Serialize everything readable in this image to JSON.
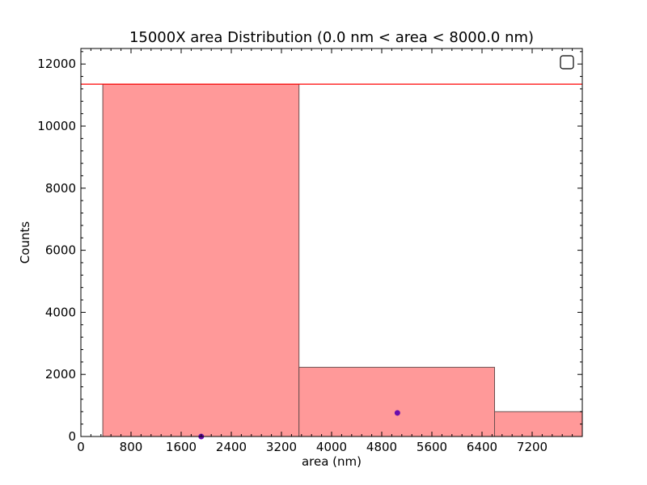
{
  "chart_data": {
    "type": "bar",
    "title": "15000X area Distribution (0.0 nm < area < 8000.0  nm)",
    "xlabel": "area (nm)",
    "ylabel": "Counts",
    "xlim": [
      0,
      8000
    ],
    "ylim": [
      0,
      12500
    ],
    "x_ticks": [
      0,
      800,
      1600,
      2400,
      3200,
      4000,
      4800,
      5600,
      6400,
      7200
    ],
    "y_ticks": [
      0,
      2000,
      4000,
      6000,
      8000,
      10000,
      12000
    ],
    "bins": [
      {
        "x0": 350,
        "x1": 3480,
        "count": 11350
      },
      {
        "x0": 3480,
        "x1": 6600,
        "count": 2230
      },
      {
        "x0": 6600,
        "x1": 8000,
        "count": 800
      }
    ],
    "points": [
      {
        "x": 1920,
        "y": 0
      },
      {
        "x": 5050,
        "y": 760
      }
    ],
    "reference_line": {
      "y": 11350
    },
    "colors": {
      "bar_fill": "#ff9999",
      "bar_edge": "#6b4f4f",
      "reference_line": "#ff0000",
      "points": "#6a0dad"
    },
    "grid": false,
    "legend": "top-right"
  }
}
